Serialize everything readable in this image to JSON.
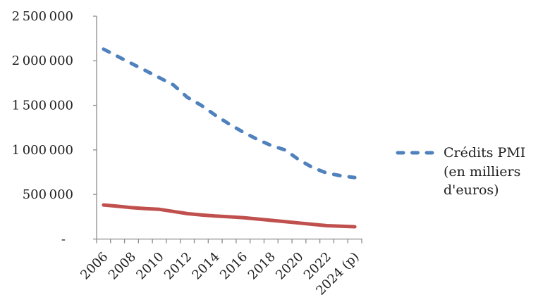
{
  "chart_data": {
    "type": "line",
    "title": "",
    "x": [
      2006,
      2007,
      2008,
      2009,
      2010,
      2011,
      2012,
      2013,
      2014,
      2015,
      2016,
      2017,
      2018,
      2019,
      2020,
      2021,
      2022,
      2023,
      2024
    ],
    "x_tick_labels": [
      "2006",
      "2008",
      "2010",
      "2012",
      "2014",
      "2016",
      "2018",
      "2020",
      "2022",
      "2024 (p)"
    ],
    "ylim": [
      0,
      2500000
    ],
    "y_ticks": [
      0,
      500000,
      1000000,
      1500000,
      2000000,
      2500000
    ],
    "y_tick_labels": [
      "-",
      "500 000",
      "1 000 000",
      "1 500 000",
      "2 000 000",
      "2 500 000"
    ],
    "grid": false,
    "legend_position": "right",
    "series": [
      {
        "name": "Crédits PMI (en milliers d'euros)",
        "color": "#4F81BD",
        "line_style": "dashed",
        "values": [
          2130000,
          2050000,
          1970000,
          1890000,
          1810000,
          1730000,
          1590000,
          1500000,
          1390000,
          1290000,
          1200000,
          1120000,
          1050000,
          1000000,
          890000,
          800000,
          740000,
          710000,
          690000
        ]
      },
      {
        "color": "#C0504D",
        "line_style": "solid",
        "values": [
          382000,
          368000,
          352000,
          342000,
          333000,
          310000,
          285000,
          271000,
          258000,
          250000,
          240000,
          225000,
          210000,
          196000,
          180000,
          165000,
          150000,
          144000,
          138000
        ]
      }
    ]
  },
  "legend": {
    "lines": [
      "Crédits PMI",
      "(en milliers",
      "d'euros)"
    ],
    "marker_color": "#4F81BD"
  },
  "colors": {
    "axis": "#8C8C8C",
    "text": "#1F1F1F",
    "background": "#FFFFFF"
  }
}
